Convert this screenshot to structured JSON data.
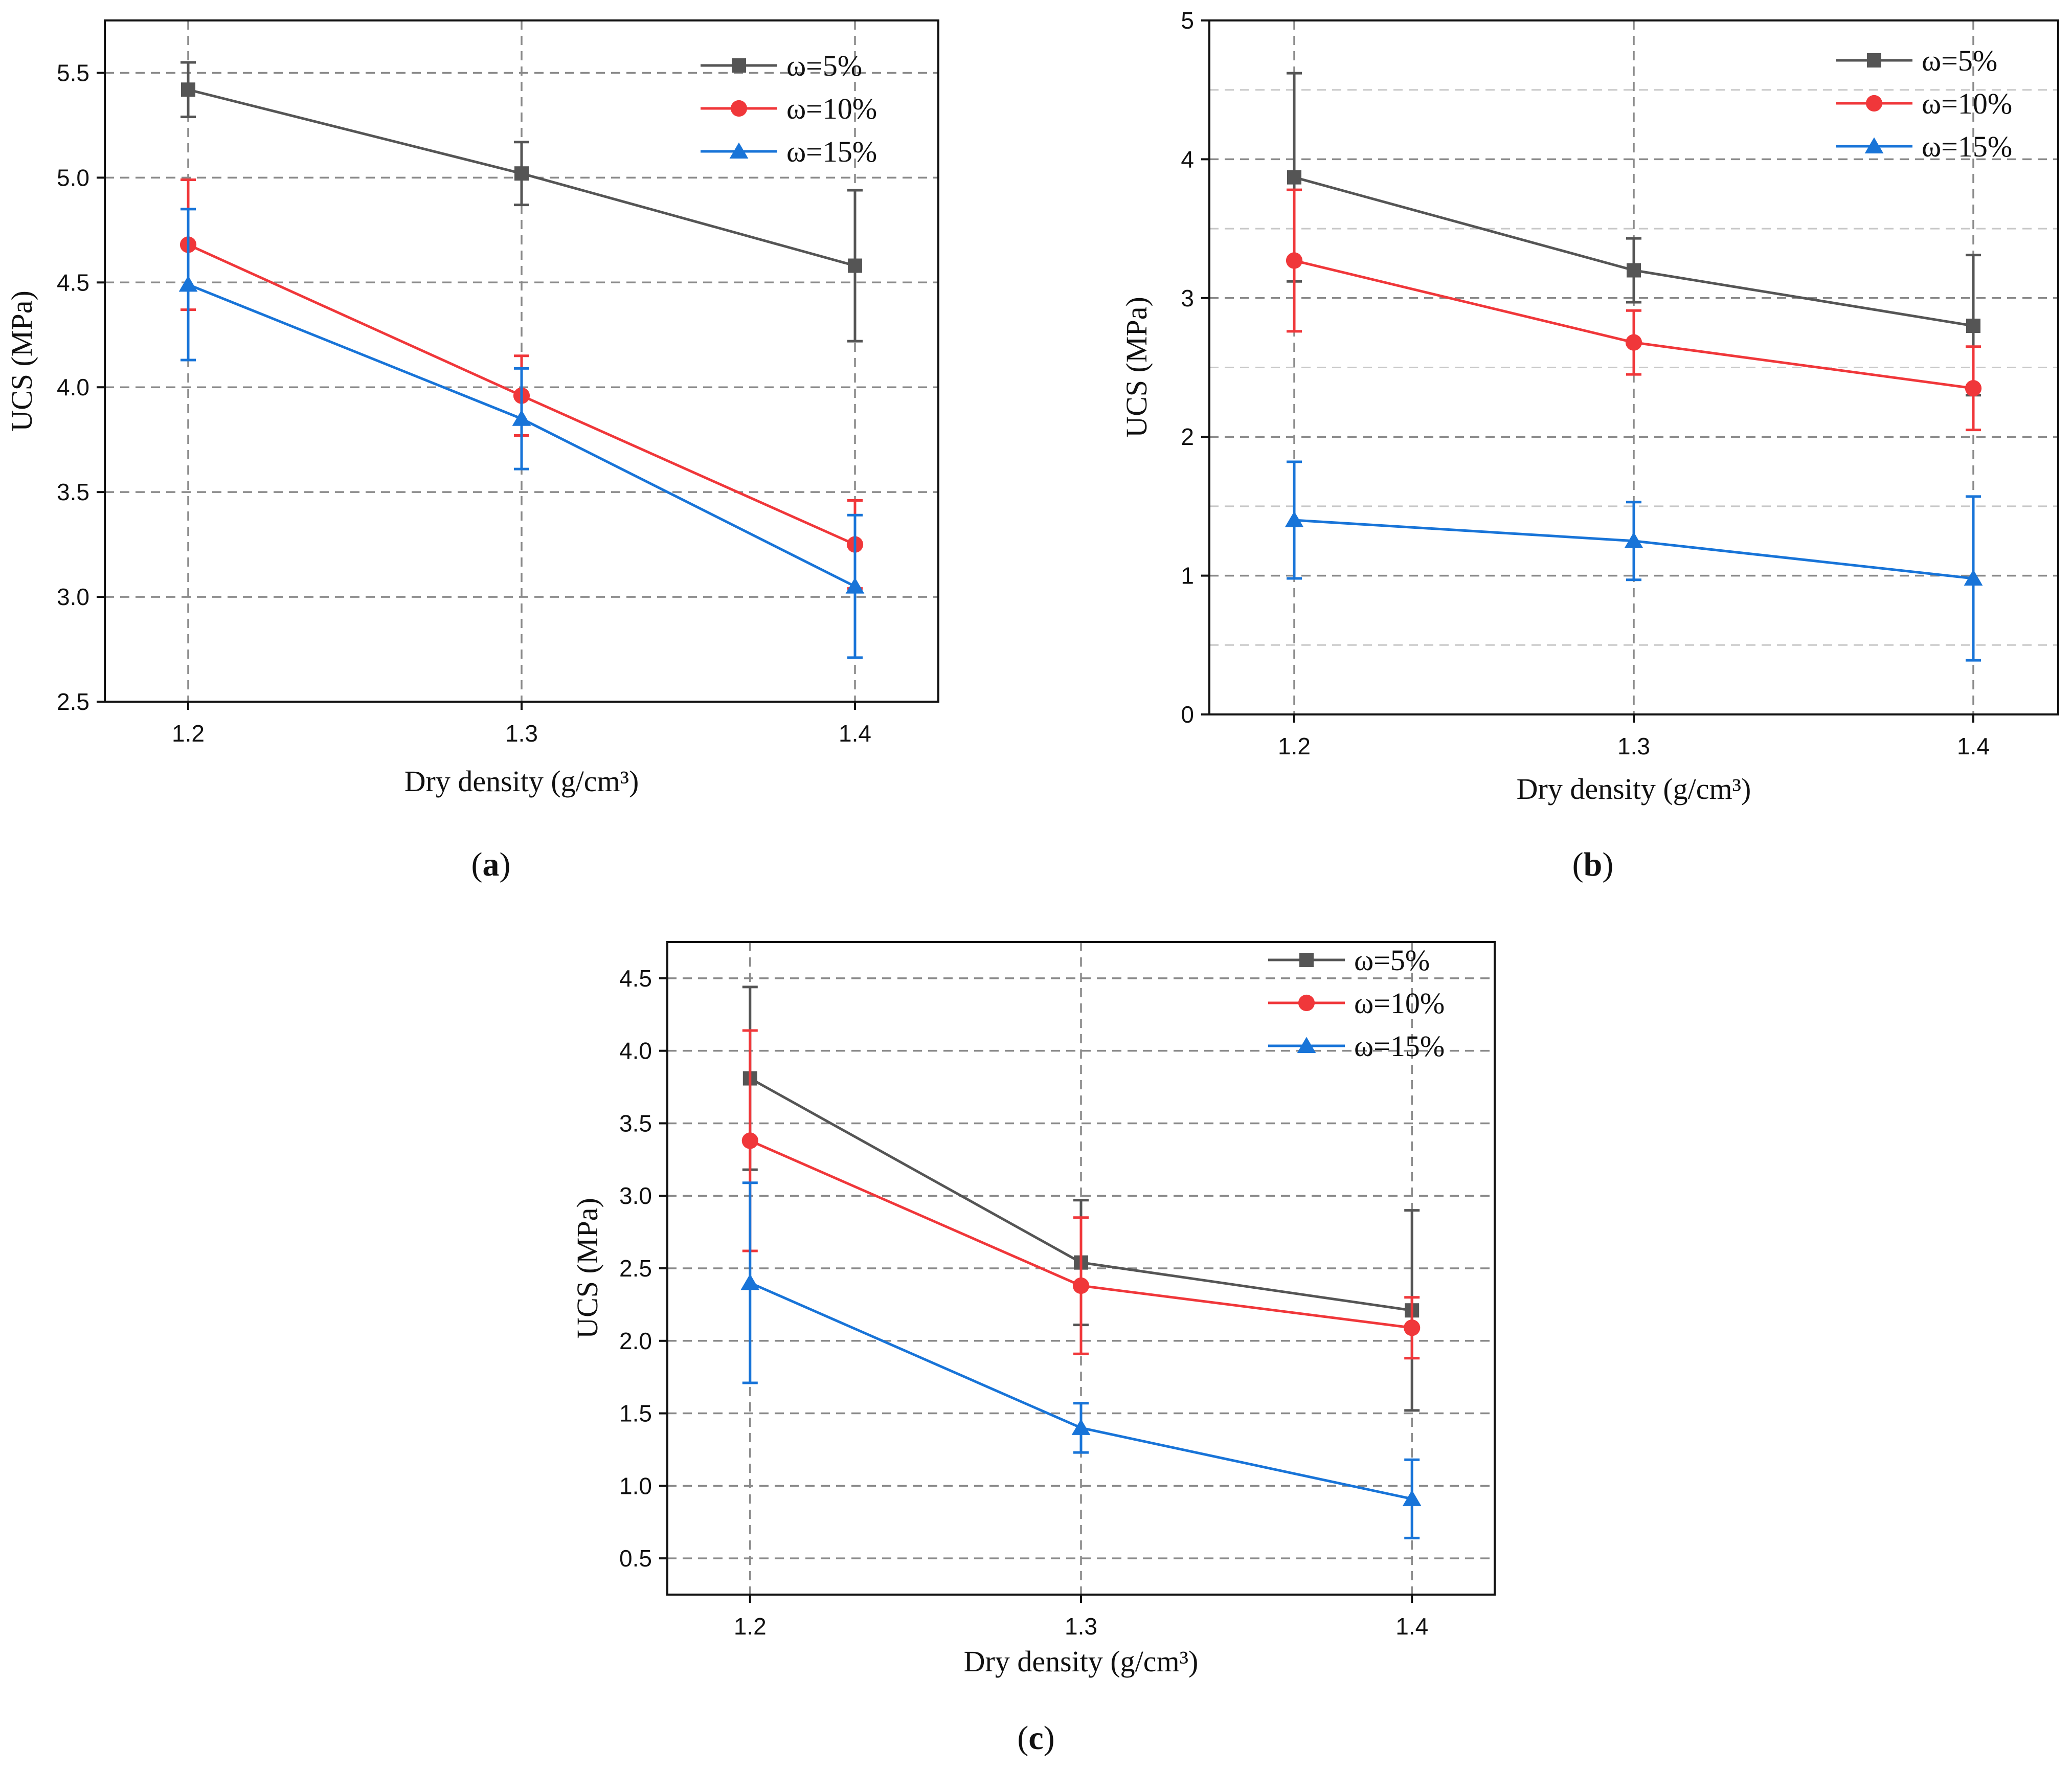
{
  "chart_data": [
    {
      "type": "line",
      "panel": "a",
      "xlabel": "Dry density (g/cm³)",
      "ylabel": "UCS (MPa)",
      "x": [
        1.2,
        1.3,
        1.4
      ],
      "xticks": [
        "1.2",
        "1.3",
        "1.4"
      ],
      "xlim": [
        1.175,
        1.425
      ],
      "ylim": [
        2.5,
        5.75
      ],
      "yticks": [
        2.5,
        3.0,
        3.5,
        4.0,
        4.5,
        5.0,
        5.5
      ],
      "ytick_labels": [
        "2.5",
        "3.0",
        "3.5",
        "4.0",
        "4.5",
        "5.0",
        "5.5"
      ],
      "minor_grid": [],
      "grid": true,
      "legend": "top-right",
      "series": [
        {
          "name": "ω=5%",
          "color": "#555555",
          "marker": "square",
          "values": [
            5.42,
            5.02,
            4.58
          ],
          "err_low": [
            5.29,
            4.87,
            4.22
          ],
          "err_high": [
            5.55,
            5.17,
            4.94
          ]
        },
        {
          "name": "ω=10%",
          "color": "#f0373a",
          "marker": "circle",
          "values": [
            4.68,
            3.96,
            3.25
          ],
          "err_low": [
            4.37,
            3.77,
            3.04
          ],
          "err_high": [
            4.99,
            4.15,
            3.46
          ]
        },
        {
          "name": "ω=15%",
          "color": "#1874d8",
          "marker": "triangle",
          "values": [
            4.49,
            3.85,
            3.05
          ],
          "err_low": [
            4.13,
            3.61,
            2.71
          ],
          "err_high": [
            4.85,
            4.09,
            3.39
          ]
        }
      ],
      "caption_letter": "a"
    },
    {
      "type": "line",
      "panel": "b",
      "xlabel": "Dry density (g/cm³)",
      "ylabel": "UCS (MPa)",
      "x": [
        1.2,
        1.3,
        1.4
      ],
      "xticks": [
        "1.2",
        "1.3",
        "1.4"
      ],
      "xlim": [
        1.175,
        1.425
      ],
      "ylim": [
        0,
        5
      ],
      "yticks": [
        0,
        1,
        2,
        3,
        4,
        5
      ],
      "ytick_labels": [
        "0",
        "1",
        "2",
        "3",
        "4",
        "5"
      ],
      "minor_grid": [
        0.5,
        1.5,
        2.5,
        3.5,
        4.5
      ],
      "grid": true,
      "legend": "top-right",
      "series": [
        {
          "name": "ω=5%",
          "color": "#555555",
          "marker": "square",
          "values": [
            3.87,
            3.2,
            2.8
          ],
          "err_low": [
            3.12,
            2.97,
            2.3
          ],
          "err_high": [
            4.62,
            3.43,
            3.31
          ]
        },
        {
          "name": "ω=10%",
          "color": "#f0373a",
          "marker": "circle",
          "values": [
            3.27,
            2.68,
            2.35
          ],
          "err_low": [
            2.76,
            2.45,
            2.05
          ],
          "err_high": [
            3.78,
            2.91,
            2.65
          ]
        },
        {
          "name": "ω=15%",
          "color": "#1874d8",
          "marker": "triangle",
          "values": [
            1.4,
            1.25,
            0.98
          ],
          "err_low": [
            0.98,
            0.97,
            0.39
          ],
          "err_high": [
            1.82,
            1.53,
            1.57
          ]
        }
      ],
      "caption_letter": "b"
    },
    {
      "type": "line",
      "panel": "c",
      "xlabel": "Dry density (g/cm³)",
      "ylabel": "UCS (MPa)",
      "x": [
        1.2,
        1.3,
        1.4
      ],
      "xticks": [
        "1.2",
        "1.3",
        "1.4"
      ],
      "xlim": [
        1.175,
        1.425
      ],
      "ylim": [
        0.25,
        4.75
      ],
      "yticks": [
        0.5,
        1.0,
        1.5,
        2.0,
        2.5,
        3.0,
        3.5,
        4.0,
        4.5
      ],
      "ytick_labels": [
        "0.5",
        "1.0",
        "1.5",
        "2.0",
        "2.5",
        "3.0",
        "3.5",
        "4.0",
        "4.5"
      ],
      "minor_grid": [],
      "grid": true,
      "legend": "top-right",
      "series": [
        {
          "name": "ω=5%",
          "color": "#555555",
          "marker": "square",
          "values": [
            3.81,
            2.54,
            2.21
          ],
          "err_low": [
            3.18,
            2.11,
            1.52
          ],
          "err_high": [
            4.44,
            2.97,
            2.9
          ]
        },
        {
          "name": "ω=10%",
          "color": "#f0373a",
          "marker": "circle",
          "values": [
            3.38,
            2.38,
            2.09
          ],
          "err_low": [
            2.62,
            1.91,
            1.88
          ],
          "err_high": [
            4.14,
            2.85,
            2.3
          ]
        },
        {
          "name": "ω=15%",
          "color": "#1874d8",
          "marker": "triangle",
          "values": [
            2.4,
            1.4,
            0.91
          ],
          "err_low": [
            1.71,
            1.23,
            0.64
          ],
          "err_high": [
            3.09,
            1.57,
            1.18
          ]
        }
      ],
      "caption_letter": "c"
    }
  ]
}
